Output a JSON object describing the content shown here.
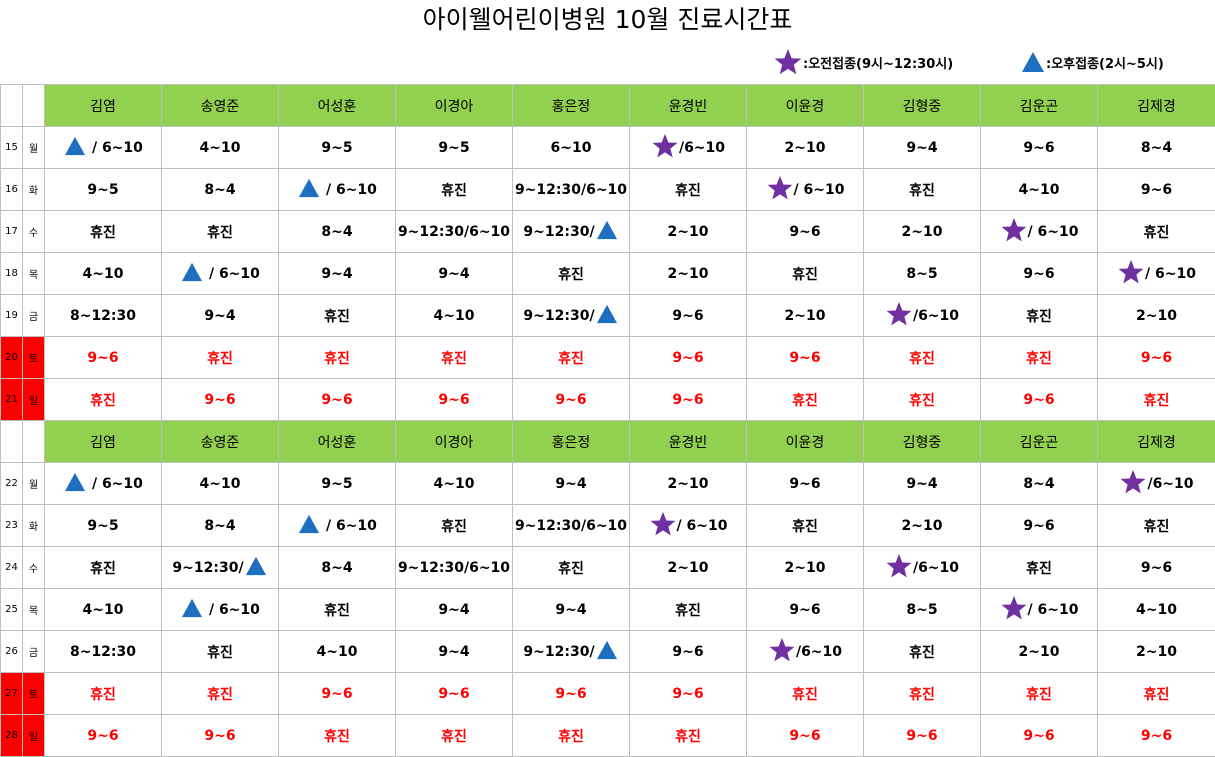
{
  "title": "아이웰어린이병원 10월 진료시간표",
  "legend": [
    {
      "icon": "star",
      "color": "#7030a0",
      "text": ":오전접종(9시~12:30시)"
    },
    {
      "icon": "triangle",
      "color": "#1f6fc0",
      "text": ":오후접종(2시~5시)"
    }
  ],
  "doctors": [
    "김염",
    "송영준",
    "어성훈",
    "이경아",
    "홍은정",
    "윤경빈",
    "이윤경",
    "김형중",
    "김운곤",
    "김제경"
  ],
  "colors": {
    "header_green": "#92d050",
    "weekend_red": "#ff0000",
    "star_purple": "#7030a0",
    "triangle_blue": "#1f6fc0"
  },
  "weeks": [
    {
      "rows": [
        {
          "date": "15",
          "day": "월",
          "weekend": false,
          "cells": [
            {
              "icon": "triangle",
              "text": " / 6~10"
            },
            {
              "text": "4~10"
            },
            {
              "text": "9~5"
            },
            {
              "text": "9~5"
            },
            {
              "text": "6~10"
            },
            {
              "icon": "star",
              "text": "/6~10"
            },
            {
              "text": "2~10"
            },
            {
              "text": "9~4"
            },
            {
              "text": "9~6"
            },
            {
              "text": "8~4"
            }
          ]
        },
        {
          "date": "16",
          "day": "화",
          "weekend": false,
          "cells": [
            {
              "text": "9~5"
            },
            {
              "text": "8~4"
            },
            {
              "icon": "triangle",
              "text": " / 6~10"
            },
            {
              "text": "휴진"
            },
            {
              "text": "9~12:30/6~10"
            },
            {
              "text": "휴진"
            },
            {
              "icon": "star",
              "text": "/ 6~10"
            },
            {
              "text": "휴진"
            },
            {
              "text": "4~10"
            },
            {
              "text": "9~6"
            }
          ]
        },
        {
          "date": "17",
          "day": "수",
          "weekend": false,
          "cells": [
            {
              "text": "휴진"
            },
            {
              "text": "휴진"
            },
            {
              "text": "8~4"
            },
            {
              "text": "9~12:30/6~10"
            },
            {
              "text": "9~12:30/",
              "icon_after": "triangle"
            },
            {
              "text": "2~10"
            },
            {
              "text": "9~6"
            },
            {
              "text": "2~10"
            },
            {
              "icon": "star",
              "text": "/ 6~10"
            },
            {
              "text": "휴진"
            }
          ]
        },
        {
          "date": "18",
          "day": "목",
          "weekend": false,
          "cells": [
            {
              "text": "4~10"
            },
            {
              "icon": "triangle",
              "text": " / 6~10"
            },
            {
              "text": "9~4"
            },
            {
              "text": "9~4"
            },
            {
              "text": "휴진"
            },
            {
              "text": "2~10"
            },
            {
              "text": "휴진"
            },
            {
              "text": "8~5"
            },
            {
              "text": "9~6"
            },
            {
              "icon": "star",
              "text": "/ 6~10"
            }
          ]
        },
        {
          "date": "19",
          "day": "금",
          "weekend": false,
          "cells": [
            {
              "text": "8~12:30"
            },
            {
              "text": "9~4"
            },
            {
              "text": "휴진"
            },
            {
              "text": "4~10"
            },
            {
              "text": "9~12:30/",
              "icon_after": "triangle"
            },
            {
              "text": "9~6"
            },
            {
              "text": "2~10"
            },
            {
              "icon": "star",
              "text": "/6~10"
            },
            {
              "text": "휴진"
            },
            {
              "text": "2~10"
            }
          ]
        },
        {
          "date": "20",
          "day": "토",
          "weekend": true,
          "cells": [
            {
              "text": "9~6"
            },
            {
              "text": "휴진"
            },
            {
              "text": "휴진"
            },
            {
              "text": "휴진"
            },
            {
              "text": "휴진"
            },
            {
              "text": "9~6"
            },
            {
              "text": "9~6"
            },
            {
              "text": "휴진"
            },
            {
              "text": "휴진"
            },
            {
              "text": "9~6"
            }
          ]
        },
        {
          "date": "21",
          "day": "일",
          "weekend": true,
          "cells": [
            {
              "text": "휴진"
            },
            {
              "text": "9~6"
            },
            {
              "text": "9~6"
            },
            {
              "text": "9~6"
            },
            {
              "text": "9~6"
            },
            {
              "text": "9~6"
            },
            {
              "text": "휴진"
            },
            {
              "text": "휴진"
            },
            {
              "text": "9~6"
            },
            {
              "text": "휴진"
            }
          ]
        }
      ]
    },
    {
      "rows": [
        {
          "date": "22",
          "day": "월",
          "weekend": false,
          "cells": [
            {
              "icon": "triangle",
              "text": " / 6~10"
            },
            {
              "text": "4~10"
            },
            {
              "text": "9~5"
            },
            {
              "text": "4~10"
            },
            {
              "text": "9~4"
            },
            {
              "text": "2~10"
            },
            {
              "text": "9~6"
            },
            {
              "text": "9~4"
            },
            {
              "text": "8~4"
            },
            {
              "icon": "star",
              "text": "/6~10"
            }
          ]
        },
        {
          "date": "23",
          "day": "화",
          "weekend": false,
          "cells": [
            {
              "text": "9~5"
            },
            {
              "text": "8~4"
            },
            {
              "icon": "triangle",
              "text": " / 6~10"
            },
            {
              "text": "휴진"
            },
            {
              "text": "9~12:30/6~10"
            },
            {
              "icon": "star",
              "text": "/ 6~10"
            },
            {
              "text": "휴진"
            },
            {
              "text": "2~10"
            },
            {
              "text": "9~6"
            },
            {
              "text": "휴진"
            }
          ]
        },
        {
          "date": "24",
          "day": "수",
          "weekend": false,
          "cells": [
            {
              "text": "휴진"
            },
            {
              "text": "9~12:30/",
              "icon_after": "triangle"
            },
            {
              "text": "8~4"
            },
            {
              "text": "9~12:30/6~10"
            },
            {
              "text": "휴진"
            },
            {
              "text": "2~10"
            },
            {
              "text": "2~10"
            },
            {
              "icon": "star",
              "text": "/6~10"
            },
            {
              "text": "휴진"
            },
            {
              "text": "9~6"
            }
          ]
        },
        {
          "date": "25",
          "day": "목",
          "weekend": false,
          "cells": [
            {
              "text": "4~10"
            },
            {
              "icon": "triangle",
              "text": " / 6~10"
            },
            {
              "text": "휴진"
            },
            {
              "text": "9~4"
            },
            {
              "text": "9~4"
            },
            {
              "text": "휴진"
            },
            {
              "text": "9~6"
            },
            {
              "text": "8~5"
            },
            {
              "icon": "star",
              "text": "/ 6~10"
            },
            {
              "text": "4~10"
            }
          ]
        },
        {
          "date": "26",
          "day": "금",
          "weekend": false,
          "cells": [
            {
              "text": "8~12:30"
            },
            {
              "text": "휴진"
            },
            {
              "text": "4~10"
            },
            {
              "text": "9~4"
            },
            {
              "text": "9~12:30/",
              "icon_after": "triangle"
            },
            {
              "text": "9~6"
            },
            {
              "icon": "star",
              "text": "/6~10"
            },
            {
              "text": "휴진"
            },
            {
              "text": "2~10"
            },
            {
              "text": "2~10"
            }
          ]
        },
        {
          "date": "27",
          "day": "토",
          "weekend": true,
          "cells": [
            {
              "text": "휴진"
            },
            {
              "text": "휴진"
            },
            {
              "text": "9~6"
            },
            {
              "text": "9~6"
            },
            {
              "text": "9~6"
            },
            {
              "text": "9~6"
            },
            {
              "text": "휴진"
            },
            {
              "text": "휴진"
            },
            {
              "text": "휴진"
            },
            {
              "text": "휴진"
            }
          ]
        },
        {
          "date": "28",
          "day": "일",
          "weekend": true,
          "cells": [
            {
              "text": "9~6"
            },
            {
              "text": "9~6"
            },
            {
              "text": "휴진"
            },
            {
              "text": "휴진"
            },
            {
              "text": "휴진"
            },
            {
              "text": "휴진"
            },
            {
              "text": "9~6"
            },
            {
              "text": "9~6"
            },
            {
              "text": "9~6"
            },
            {
              "text": "9~6"
            }
          ]
        }
      ]
    }
  ]
}
